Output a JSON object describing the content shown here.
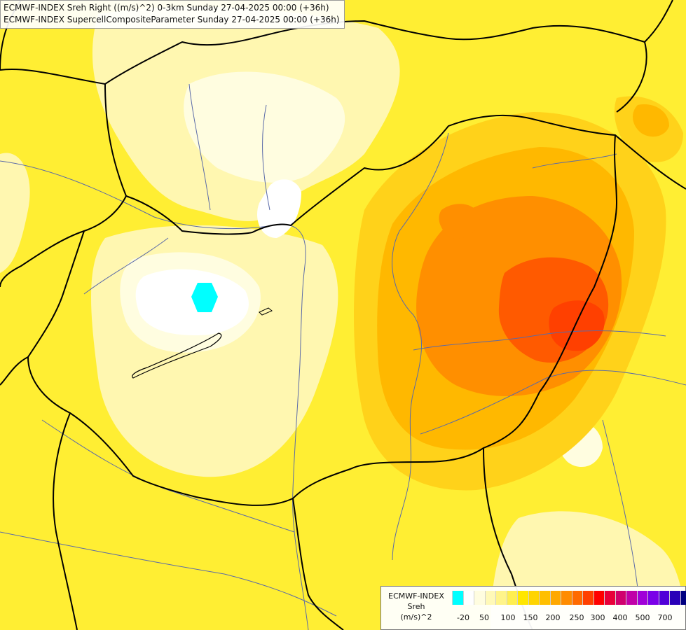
{
  "map": {
    "title_line_1": "ECMWF-INDEX Sreh Right ((m/s)^2) 0-3km Sunday 27-04-2025 00:00 (+36h)",
    "title_line_2": "ECMWF-INDEX SupercellCompositeParameter Sunday 27-04-2025 00:00 (+36h)",
    "region": "Hungary and surroundings",
    "field": "Storm-relative helicity 0-3 km",
    "max_area": "eastern Hungary / Romanian border",
    "colors": {
      "land_low": "#fff7b0",
      "yellow": "#ffee33",
      "light_orange": "#ffd21a",
      "orange": "#ffb800",
      "dark_orange": "#ff8f00",
      "red_orange": "#ff5a00",
      "cyan_minimum": "#00ffff",
      "borders": "#000000",
      "rivers": "#5a6aa8"
    }
  },
  "legend": {
    "product": "ECMWF-INDEX",
    "variable": "Sreh",
    "unit": "(m/s)^2",
    "swatches": [
      "#00ffff",
      "#ffffff",
      "#fffde0",
      "#fff9b8",
      "#fff48a",
      "#ffee50",
      "#ffe600",
      "#ffd400",
      "#ffbf00",
      "#ffa800",
      "#ff8c00",
      "#ff6a00",
      "#ff4000",
      "#ff0000",
      "#e8003a",
      "#d0006e",
      "#c000a8",
      "#a000d8",
      "#7a00e8",
      "#5000d8",
      "#2a00b8",
      "#000080"
    ],
    "tick_labels": [
      "-20",
      "50",
      "100",
      "150",
      "200",
      "250",
      "300",
      "400",
      "500",
      "700"
    ]
  }
}
